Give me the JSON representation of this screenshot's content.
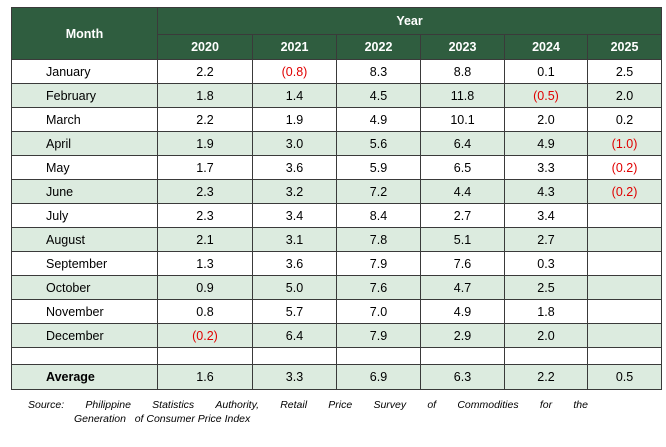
{
  "table": {
    "month_header": "Month",
    "year_header": "Year",
    "years": [
      "2020",
      "2021",
      "2022",
      "2023",
      "2024",
      "2025"
    ],
    "rows": [
      {
        "month": "January",
        "values": [
          "2.2",
          "(0.8)",
          "8.3",
          "8.8",
          "0.1",
          "2.5"
        ]
      },
      {
        "month": "February",
        "values": [
          "1.8",
          "1.4",
          "4.5",
          "11.8",
          "(0.5)",
          "2.0"
        ]
      },
      {
        "month": "March",
        "values": [
          "2.2",
          "1.9",
          "4.9",
          "10.1",
          "2.0",
          "0.2"
        ]
      },
      {
        "month": "April",
        "values": [
          "1.9",
          "3.0",
          "5.6",
          "6.4",
          "4.9",
          "(1.0)"
        ]
      },
      {
        "month": "May",
        "values": [
          "1.7",
          "3.6",
          "5.9",
          "6.5",
          "3.3",
          "(0.2)"
        ]
      },
      {
        "month": "June",
        "values": [
          "2.3",
          "3.2",
          "7.2",
          "4.4",
          "4.3",
          "(0.2)"
        ]
      },
      {
        "month": "July",
        "values": [
          "2.3",
          "3.4",
          "8.4",
          "2.7",
          "3.4",
          ""
        ]
      },
      {
        "month": "August",
        "values": [
          "2.1",
          "3.1",
          "7.8",
          "5.1",
          "2.7",
          ""
        ]
      },
      {
        "month": "September",
        "values": [
          "1.3",
          "3.6",
          "7.9",
          "7.6",
          "0.3",
          ""
        ]
      },
      {
        "month": "October",
        "values": [
          "0.9",
          "5.0",
          "7.6",
          "4.7",
          "2.5",
          ""
        ]
      },
      {
        "month": "November",
        "values": [
          "0.8",
          "5.7",
          "7.0",
          "4.9",
          "1.8",
          ""
        ]
      },
      {
        "month": "December",
        "values": [
          "(0.2)",
          "6.4",
          "7.9",
          "2.9",
          "2.0",
          ""
        ]
      }
    ],
    "average": {
      "label": "Average",
      "values": [
        "1.6",
        "3.3",
        "6.9",
        "6.3",
        "2.2",
        "0.5"
      ]
    }
  },
  "source": {
    "line1": [
      "Source:",
      "Philippine",
      "Statistics",
      "Authority,",
      "Retail",
      "Price",
      "Survey",
      "of",
      "Commodities",
      "for",
      "the"
    ],
    "line2": "Generation   of Consumer Price Index"
  },
  "colors": {
    "header_bg": "#2f5d3f",
    "shade_bg": "#dcebdf",
    "negative_text": "#e00000"
  }
}
